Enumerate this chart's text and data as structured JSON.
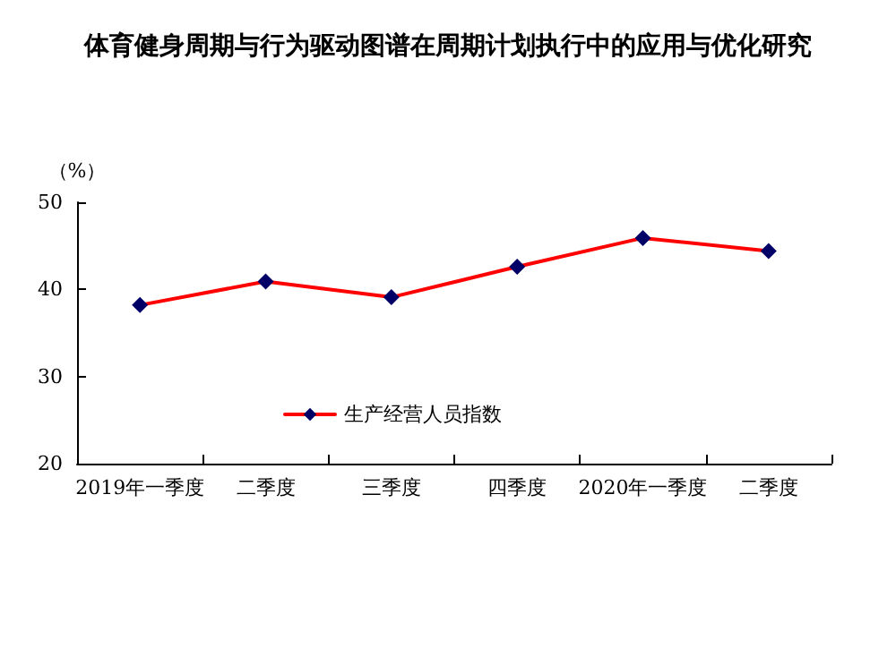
{
  "chart_data": {
    "type": "line",
    "title": "体育健身周期与行为驱动图谱在周期计划执行中的应用与优化研究",
    "ylabel": "（%）",
    "categories": [
      "2019年一季度",
      "二季度",
      "三季度",
      "四季度",
      "2020年一季度",
      "二季度"
    ],
    "series": [
      {
        "name": "生产经营人员指数",
        "color": "#ff0000",
        "values": [
          38.2,
          40.9,
          39.1,
          42.6,
          45.9,
          44.4
        ]
      }
    ],
    "ylim": [
      20,
      50
    ],
    "yticks": [
      20,
      30,
      40,
      50
    ],
    "grid": false,
    "legend": "bottom left",
    "marker": "diamond",
    "line_style": "solid"
  }
}
